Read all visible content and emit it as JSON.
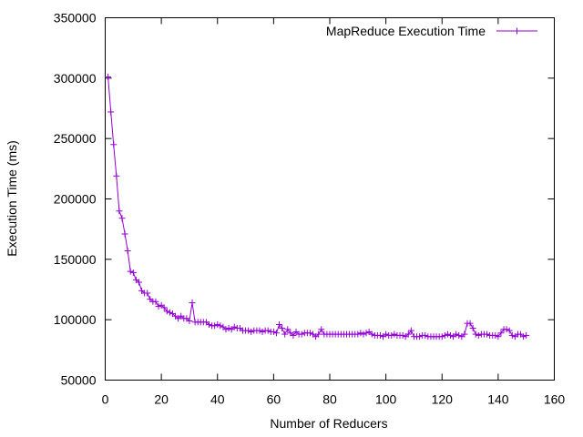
{
  "chart_data": {
    "type": "line",
    "title": "",
    "xlabel": "Number of Reducers",
    "ylabel": "Execution Time (ms)",
    "xlim": [
      0,
      160
    ],
    "ylim": [
      50000,
      350000
    ],
    "x_ticks": [
      0,
      20,
      40,
      60,
      80,
      100,
      120,
      140,
      160
    ],
    "y_ticks": [
      50000,
      100000,
      150000,
      200000,
      250000,
      300000,
      350000
    ],
    "x_tick_labels": [
      "0",
      "20",
      "40",
      "60",
      "80",
      "100",
      "120",
      "140",
      "160"
    ],
    "y_tick_labels": [
      "50000",
      "100000",
      "150000",
      "200000",
      "250000",
      "300000",
      "350000"
    ],
    "grid": false,
    "legend_position": "top-right",
    "series": [
      {
        "name": "MapReduce Execution Time",
        "color": "#9400d3",
        "marker": "plus",
        "x": [
          1,
          2,
          3,
          4,
          5,
          6,
          7,
          8,
          9,
          10,
          11,
          12,
          13,
          14,
          15,
          16,
          17,
          18,
          19,
          20,
          21,
          22,
          23,
          24,
          25,
          26,
          27,
          28,
          29,
          30,
          31,
          32,
          33,
          34,
          35,
          36,
          37,
          38,
          39,
          40,
          41,
          42,
          43,
          44,
          45,
          46,
          47,
          48,
          49,
          50,
          51,
          52,
          53,
          54,
          55,
          56,
          57,
          58,
          59,
          60,
          61,
          62,
          63,
          64,
          65,
          66,
          67,
          68,
          69,
          70,
          71,
          72,
          73,
          74,
          75,
          76,
          77,
          78,
          79,
          80,
          81,
          82,
          83,
          84,
          85,
          86,
          87,
          88,
          89,
          90,
          91,
          92,
          93,
          94,
          95,
          96,
          97,
          98,
          99,
          100,
          101,
          102,
          103,
          104,
          105,
          106,
          107,
          108,
          109,
          110,
          111,
          112,
          113,
          114,
          115,
          116,
          117,
          118,
          119,
          120,
          121,
          122,
          123,
          124,
          125,
          126,
          127,
          128,
          129,
          130,
          131,
          132,
          133,
          134,
          135,
          136,
          137,
          138,
          139,
          140,
          141,
          142,
          143,
          144,
          145,
          146,
          147,
          148,
          149,
          150
        ],
        "y": [
          301000,
          272000,
          245000,
          219000,
          190000,
          184000,
          171000,
          157000,
          140000,
          139000,
          133000,
          131000,
          124000,
          122000,
          122000,
          117000,
          115000,
          115000,
          111000,
          112000,
          110000,
          107000,
          106000,
          105000,
          103000,
          101000,
          103000,
          101000,
          101000,
          99000,
          114000,
          98000,
          98000,
          98000,
          98000,
          98000,
          96000,
          95000,
          95000,
          96000,
          95000,
          94000,
          92000,
          93000,
          92000,
          94000,
          93000,
          93000,
          91000,
          91000,
          91000,
          90000,
          91000,
          91000,
          91000,
          90000,
          91000,
          91000,
          90000,
          90000,
          89000,
          96000,
          93000,
          88000,
          92000,
          89000,
          87000,
          90000,
          88000,
          88000,
          89000,
          89000,
          89000,
          88000,
          86000,
          88000,
          92000,
          88000,
          88000,
          88000,
          88000,
          88000,
          88000,
          88000,
          88000,
          88000,
          88000,
          88000,
          88000,
          88000,
          89000,
          88000,
          89000,
          90000,
          88000,
          87000,
          87000,
          87000,
          86000,
          88000,
          87000,
          87000,
          88000,
          87000,
          87000,
          87000,
          86000,
          88000,
          91000,
          86000,
          86000,
          86000,
          87000,
          87000,
          86000,
          86000,
          86000,
          86000,
          86000,
          86000,
          87000,
          88000,
          87000,
          86000,
          88000,
          87000,
          86000,
          88000,
          97000,
          97000,
          93000,
          88000,
          87000,
          88000,
          88000,
          88000,
          87000,
          87000,
          87000,
          86000,
          89000,
          92000,
          92000,
          91000,
          87000,
          86000,
          88000,
          88000,
          86000,
          87000
        ]
      }
    ]
  }
}
